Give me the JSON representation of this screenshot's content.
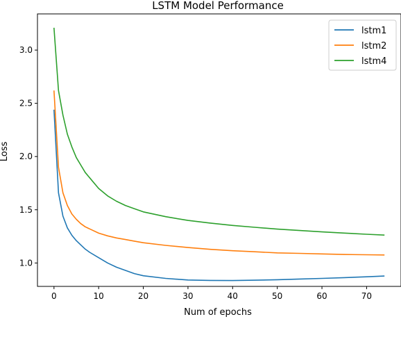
{
  "chart_data": {
    "type": "line",
    "title": "LSTM Model Performance",
    "xlabel": "Num of epochs",
    "ylabel": "Loss",
    "xlim": [
      -3.7,
      77.7
    ],
    "ylim": [
      0.78,
      3.34
    ],
    "xticks": [
      0,
      10,
      20,
      30,
      40,
      50,
      60,
      70
    ],
    "yticks": [
      1.0,
      1.5,
      2.0,
      2.5,
      3.0
    ],
    "grid": false,
    "legend_position": "top-right",
    "series": [
      {
        "name": "lstm1",
        "color": "#1f77b4",
        "x": [
          0,
          1,
          2,
          3,
          4,
          5,
          6,
          7,
          8,
          10,
          12,
          14,
          16,
          18,
          20,
          25,
          30,
          35,
          40,
          45,
          50,
          55,
          60,
          65,
          70,
          74
        ],
        "values": [
          2.44,
          1.66,
          1.44,
          1.33,
          1.26,
          1.21,
          1.17,
          1.13,
          1.1,
          1.05,
          1.0,
          0.96,
          0.93,
          0.9,
          0.88,
          0.855,
          0.84,
          0.836,
          0.835,
          0.838,
          0.843,
          0.849,
          0.855,
          0.862,
          0.87,
          0.877
        ]
      },
      {
        "name": "lstm2",
        "color": "#ff7f0e",
        "x": [
          0,
          1,
          2,
          3,
          4,
          5,
          6,
          7,
          8,
          10,
          12,
          14,
          16,
          18,
          20,
          25,
          30,
          35,
          40,
          45,
          50,
          55,
          60,
          65,
          70,
          74
        ],
        "values": [
          2.62,
          1.9,
          1.66,
          1.54,
          1.46,
          1.41,
          1.37,
          1.34,
          1.32,
          1.28,
          1.255,
          1.235,
          1.22,
          1.205,
          1.19,
          1.165,
          1.145,
          1.128,
          1.115,
          1.105,
          1.095,
          1.09,
          1.085,
          1.08,
          1.077,
          1.075
        ]
      },
      {
        "name": "lstm4",
        "color": "#2ca02c",
        "x": [
          0,
          1,
          2,
          3,
          4,
          5,
          6,
          7,
          8,
          10,
          12,
          14,
          16,
          18,
          20,
          25,
          30,
          35,
          40,
          45,
          50,
          55,
          60,
          65,
          70,
          74
        ],
        "values": [
          3.21,
          2.62,
          2.39,
          2.21,
          2.09,
          1.99,
          1.92,
          1.85,
          1.8,
          1.7,
          1.63,
          1.58,
          1.54,
          1.51,
          1.48,
          1.435,
          1.4,
          1.375,
          1.353,
          1.335,
          1.318,
          1.305,
          1.292,
          1.281,
          1.27,
          1.262
        ]
      }
    ]
  }
}
